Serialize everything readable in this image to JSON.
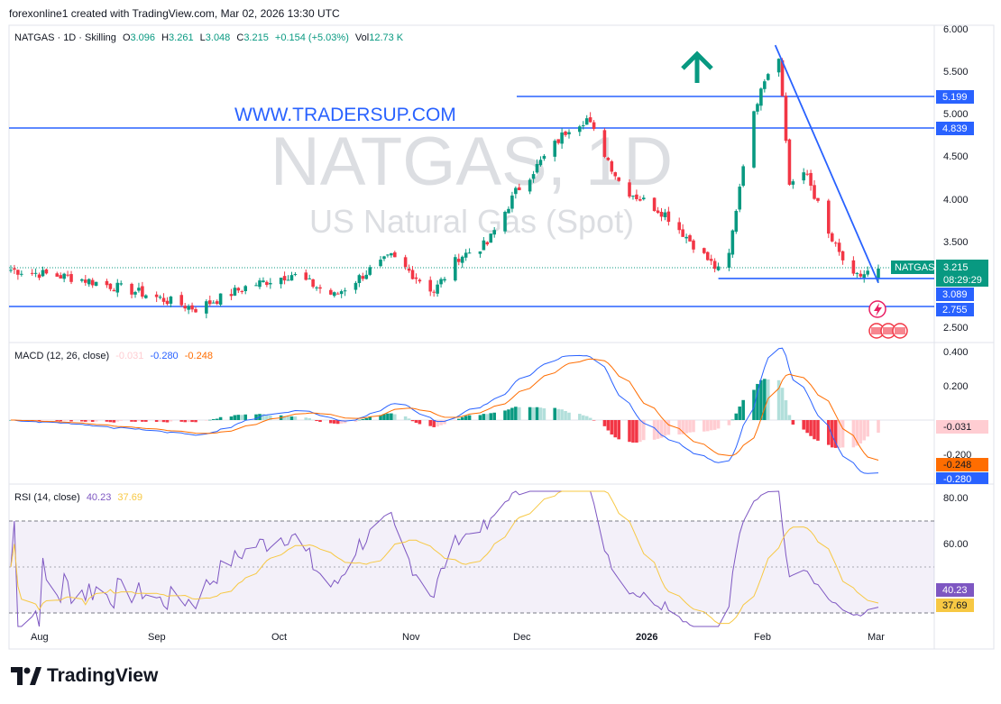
{
  "header": {
    "attribution": "forexonline1 created with TradingView.com, Mar 02, 2026 13:30 UTC"
  },
  "symbol": {
    "name": "NATGAS · 1D · Skilling",
    "o_label": "O",
    "o": "3.096",
    "h_label": "H",
    "h": "3.261",
    "l_label": "L",
    "l": "3.048",
    "c_label": "C",
    "c": "3.215",
    "change": "+0.154 (+5.03%)",
    "vol_label": "Vol",
    "vol": "12.73 K",
    "tag": "NATGAS",
    "countdown": "08:29:29"
  },
  "watermark": {
    "line1": "NATGAS, 1D",
    "line2": "US Natural Gas (Spot)"
  },
  "annotation": {
    "site": "WWW.TRADERSUP.COM"
  },
  "levels": [
    {
      "value": 5.199,
      "label": "5.199"
    },
    {
      "value": 4.839,
      "label": "4.839"
    },
    {
      "value": 3.089,
      "label": "3.089"
    },
    {
      "value": 2.755,
      "label": "2.755"
    }
  ],
  "price_axis": [
    "6.000",
    "5.500",
    "5.000",
    "4.500",
    "4.000",
    "3.500",
    "2.500"
  ],
  "time_axis": [
    "Aug",
    "Sep",
    "Oct",
    "Nov",
    "Dec",
    "2026",
    "Feb",
    "Mar"
  ],
  "macd": {
    "label": "MACD (12, 26, close)",
    "hist": "-0.031",
    "macd": "-0.280",
    "signal": "-0.248",
    "axis": [
      "0.400",
      "0.200",
      "-0.200"
    ]
  },
  "rsi": {
    "label": "RSI (14, close)",
    "value": "40.23",
    "ma": "37.69",
    "axis": [
      "80.00",
      "60.00"
    ]
  },
  "colors": {
    "up": "#089981",
    "down": "#f23645",
    "line": "#2962ff",
    "signal": "#ff6d00",
    "rsi": "#7e57c2",
    "rsi_ma": "#f7c843"
  },
  "footer": {
    "brand": "TradingView"
  },
  "chart_data": {
    "type": "candlestick",
    "x_range": [
      "2025-07-01",
      "2026-03-02"
    ],
    "ylim": [
      2.4,
      6.0
    ],
    "anchors": [
      [
        "2025-07-01",
        3.2
      ],
      [
        "2025-07-20",
        3.1
      ],
      [
        "2025-08-05",
        2.95
      ],
      [
        "2025-08-22",
        2.75
      ],
      [
        "2025-09-05",
        3.0
      ],
      [
        "2025-09-18",
        3.15
      ],
      [
        "2025-09-30",
        2.9
      ],
      [
        "2025-10-10",
        3.2
      ],
      [
        "2025-10-16",
        3.35
      ],
      [
        "2025-10-22",
        3.15
      ],
      [
        "2025-10-28",
        2.95
      ],
      [
        "2025-11-04",
        3.35
      ],
      [
        "2025-11-12",
        3.5
      ],
      [
        "2025-11-20",
        4.1
      ],
      [
        "2025-11-27",
        4.45
      ],
      [
        "2025-12-05",
        4.85
      ],
      [
        "2025-12-10",
        4.95
      ],
      [
        "2025-12-20",
        4.15
      ],
      [
        "2026-01-01",
        3.85
      ],
      [
        "2026-01-10",
        3.45
      ],
      [
        "2026-01-18",
        3.1
      ],
      [
        "2026-01-23",
        4.45
      ],
      [
        "2026-01-28",
        5.35
      ],
      [
        "2026-02-02",
        5.7
      ],
      [
        "2026-02-05",
        4.2
      ],
      [
        "2026-02-10",
        4.3
      ],
      [
        "2026-02-16",
        3.6
      ],
      [
        "2026-02-23",
        3.1
      ],
      [
        "2026-03-02",
        3.215
      ]
    ],
    "trendline": [
      [
        "2026-02-01",
        5.8
      ],
      [
        "2026-03-02",
        3.05
      ]
    ],
    "support_line": {
      "from": "2026-01-16",
      "value": 3.1
    }
  }
}
